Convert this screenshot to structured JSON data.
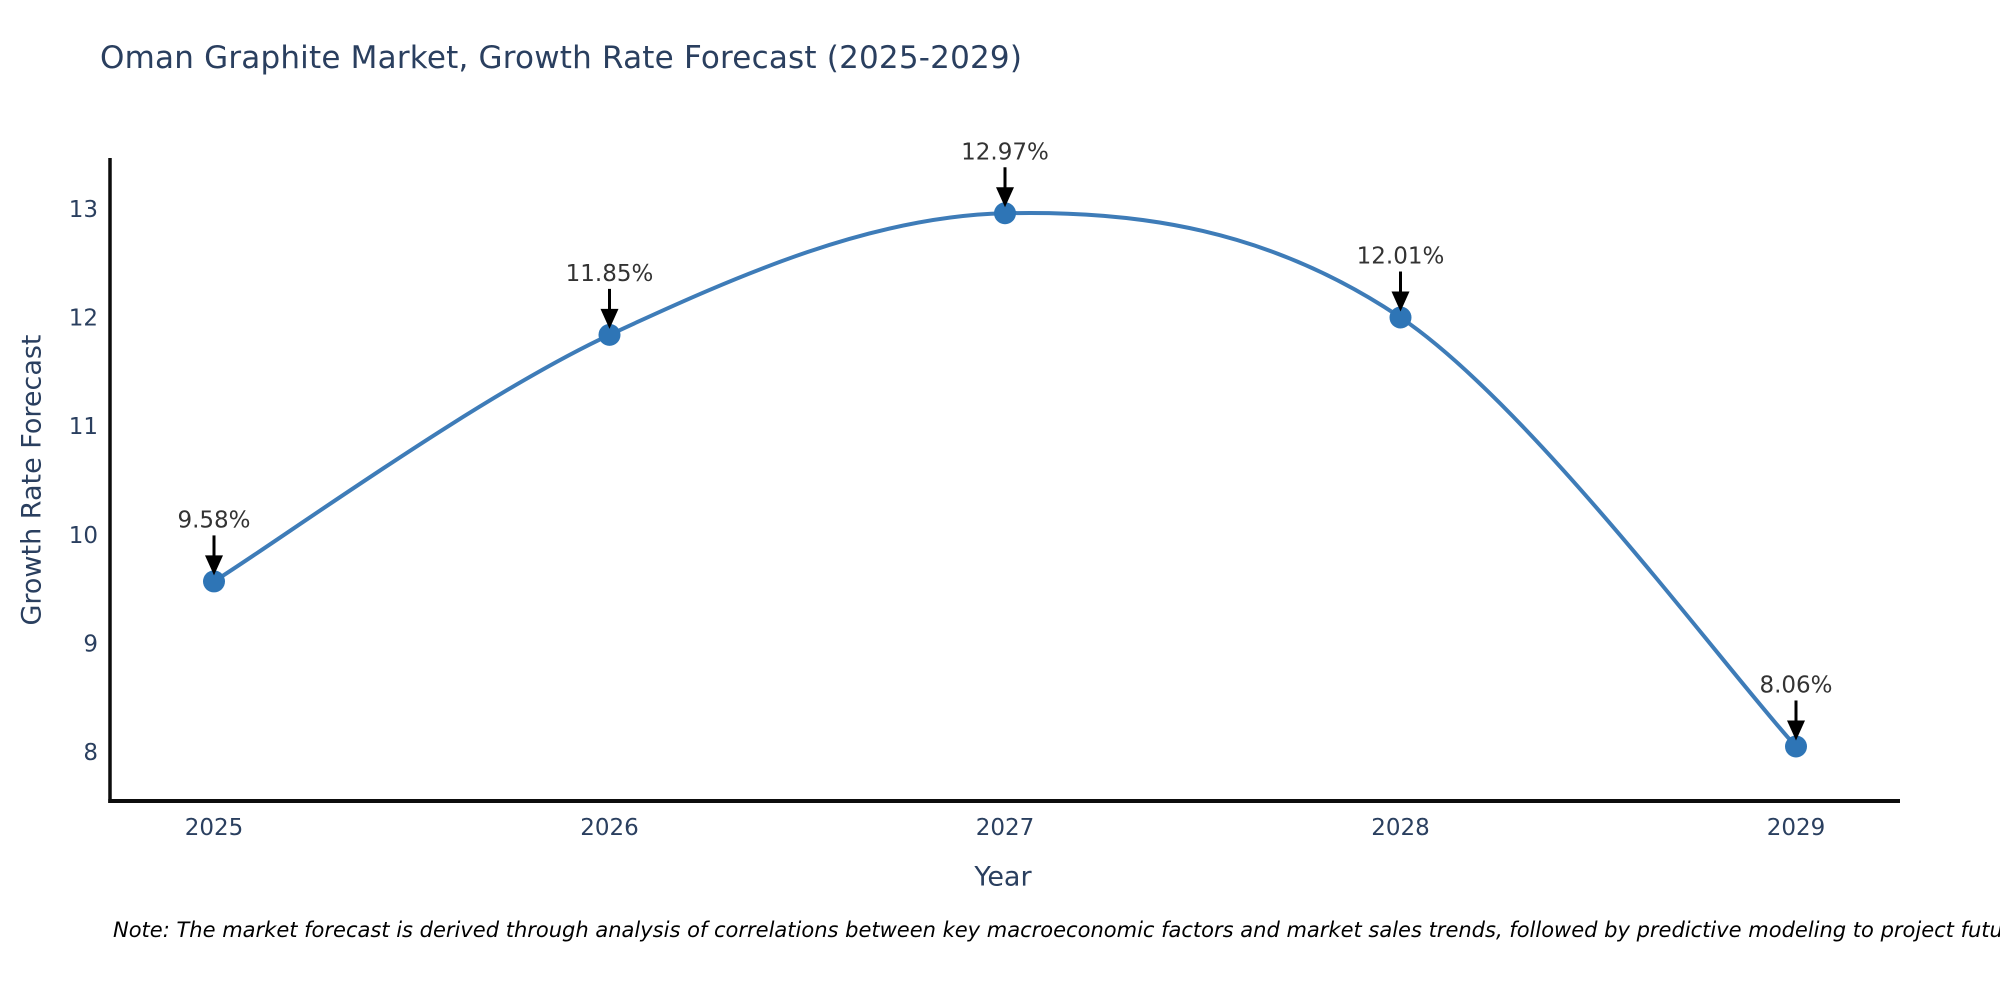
{
  "note": "Note: The market forecast is derived through analysis of correlations between key macroeconomic factors and market sales trends, followed by predictive modeling to project future sales",
  "chart_data": {
    "type": "line",
    "title": "Oman Graphite Market, Growth Rate Forecast (2025-2029)",
    "xlabel": "Year",
    "ylabel": "Growth Rate Forecast",
    "x": [
      2025,
      2026,
      2027,
      2028,
      2029
    ],
    "series": [
      {
        "name": "Growth Rate Forecast",
        "values": [
          9.58,
          11.85,
          12.97,
          12.01,
          8.06
        ]
      }
    ],
    "point_labels": [
      "9.58%",
      "11.85%",
      "12.97%",
      "12.01%",
      "8.06%"
    ],
    "y_ticks": [
      8,
      9,
      10,
      11,
      12,
      13
    ],
    "ylim": [
      7.56,
      13.48
    ],
    "line_shape": "spline",
    "grid": false,
    "legend_position": "none",
    "colors": {
      "line": "#3e7cb8",
      "marker": "#2e75b6",
      "axis_line": "#0d0d0d",
      "tick_label": "#2a3f5f",
      "title": "#2a3f5f",
      "annotation_text": "#333333",
      "arrow": "#000000"
    }
  }
}
